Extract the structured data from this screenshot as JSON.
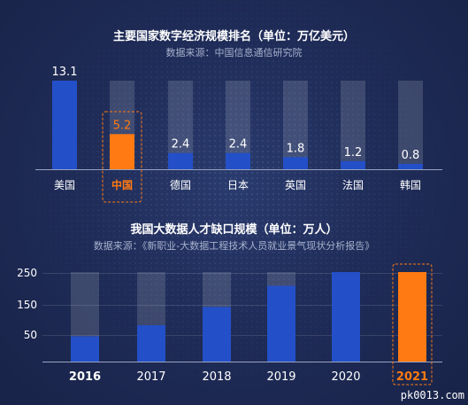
{
  "colors": {
    "bar": "#2350c8",
    "highlight": "#ff7a12",
    "track": "rgba(255,255,255,0.14)",
    "text": "#ffffff",
    "axis": "#9aa3bf",
    "source": "#a7b0cc"
  },
  "watermark": "pk0013.com",
  "chart_data": [
    {
      "type": "bar",
      "title": "主要国家数字经济规模排名（单位：万亿美元）",
      "source": "数据来源：中国信息通信研究院",
      "categories": [
        "美国",
        "中国",
        "德国",
        "日本",
        "英国",
        "法国",
        "韩国"
      ],
      "values": [
        13.1,
        5.2,
        2.4,
        2.4,
        1.8,
        1.2,
        0.8
      ],
      "value_labels": [
        "13.1",
        "5.2",
        "2.4",
        "2.4",
        "1.8",
        "1.2",
        "0.8"
      ],
      "highlight": "中国",
      "ylim": [
        0,
        13.1
      ],
      "grid": false
    },
    {
      "type": "bar",
      "title": "我国大数据人才缺口规模（单位：万人）",
      "source": "数据来源：《新职业-大数据工程技术人员就业景气现状分析报告》",
      "categories": [
        "2016",
        "2017",
        "2018",
        "2019",
        "2020",
        "2021"
      ],
      "values": [
        50,
        72,
        108,
        150,
        195,
        250
      ],
      "highlight": "2021",
      "yticks": [
        "250",
        "150",
        "50"
      ],
      "ylim": [
        0,
        250
      ],
      "grid": true
    }
  ]
}
